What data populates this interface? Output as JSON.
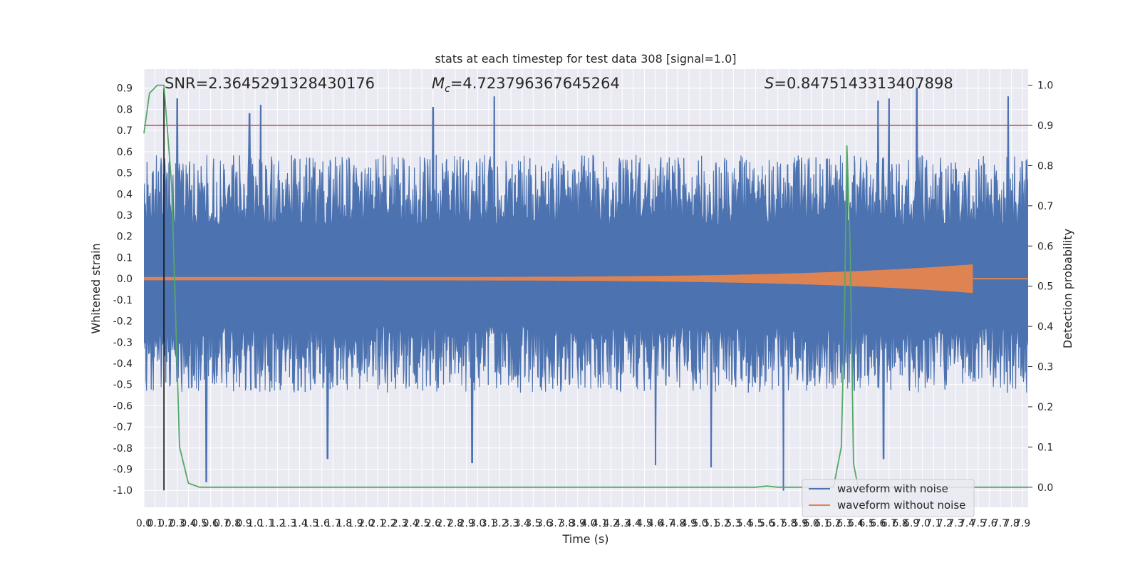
{
  "chart_data": {
    "type": "line",
    "title": "stats at each timestep for test data 308 [signal=1.0]",
    "xlabel": "Time (s)",
    "ylabel": "Whitened strain",
    "y2label": "Detection probability",
    "xlim": [
      0.0,
      7.95
    ],
    "ylim": [
      -1.08,
      0.99
    ],
    "y2lim": [
      -0.05,
      1.04
    ],
    "grid": true,
    "legend_position": "lower right",
    "x_ticks": [
      "0.0",
      "0.1",
      "0.2",
      "0.3",
      "0.4",
      "0.5",
      "0.6",
      "0.7",
      "0.8",
      "0.9",
      "1.0",
      "1.1",
      "1.2",
      "1.3",
      "1.4",
      "1.5",
      "1.6",
      "1.7",
      "1.8",
      "1.9",
      "2.0",
      "2.1",
      "2.2",
      "2.3",
      "2.4",
      "2.5",
      "2.6",
      "2.7",
      "2.8",
      "2.9",
      "3.0",
      "3.1",
      "3.2",
      "3.3",
      "3.4",
      "3.5",
      "3.6",
      "3.7",
      "3.8",
      "3.9",
      "4.0",
      "4.1",
      "4.2",
      "4.3",
      "4.4",
      "4.5",
      "4.6",
      "4.7",
      "4.8",
      "4.9",
      "5.0",
      "5.1",
      "5.2",
      "5.3",
      "5.4",
      "5.5",
      "5.6",
      "5.7",
      "5.8",
      "5.9",
      "6.0",
      "6.1",
      "6.2",
      "6.3",
      "6.4",
      "6.5",
      "6.6",
      "6.7",
      "6.8",
      "6.9",
      "7.0",
      "7.1",
      "7.2",
      "7.3",
      "7.4",
      "7.5",
      "7.6",
      "7.7",
      "7.8",
      "7.9"
    ],
    "y_ticks": [
      "0.9",
      "0.8",
      "0.7",
      "0.6",
      "0.5",
      "0.4",
      "0.3",
      "0.2",
      "0.1",
      "0.0",
      "-0.1",
      "-0.2",
      "-0.3",
      "-0.4",
      "-0.5",
      "-0.6",
      "-0.7",
      "-0.8",
      "-0.9",
      "-1.0"
    ],
    "y2_ticks": [
      "1.0",
      "0.9",
      "0.8",
      "0.7",
      "0.6",
      "0.5",
      "0.4",
      "0.3",
      "0.2",
      "0.1",
      "0.0"
    ],
    "annotations": [
      {
        "text": "SNR=2.3645291328430176"
      },
      {
        "text": "Mc=4.723796367645264",
        "math_symbol": "M",
        "math_sub": "c",
        "rest": "=4.723796367645264"
      },
      {
        "text": "S=0.8475143313407898",
        "math_symbol": "S",
        "rest": "=0.8475143313407898"
      }
    ],
    "vertical_marker_x": 0.18,
    "threshold_probability": 0.9,
    "series": [
      {
        "name": "waveform with noise",
        "color": "#4c72b0",
        "typical_upper": 0.45,
        "typical_lower": -0.4,
        "peaks": [
          {
            "x": 0.3,
            "y": 0.85
          },
          {
            "x": 0.95,
            "y": 0.78
          },
          {
            "x": 1.05,
            "y": 0.82
          },
          {
            "x": 2.6,
            "y": 0.81
          },
          {
            "x": 3.15,
            "y": 0.86
          },
          {
            "x": 6.6,
            "y": 0.84
          },
          {
            "x": 6.7,
            "y": 0.85
          },
          {
            "x": 6.95,
            "y": 0.9
          },
          {
            "x": 7.77,
            "y": 0.86
          },
          {
            "x": 0.56,
            "y": -0.96
          },
          {
            "x": 1.65,
            "y": -0.85
          },
          {
            "x": 2.95,
            "y": -0.87
          },
          {
            "x": 4.6,
            "y": -0.88
          },
          {
            "x": 5.1,
            "y": -0.89
          },
          {
            "x": 5.75,
            "y": -1.0
          },
          {
            "x": 6.65,
            "y": -0.85
          }
        ]
      },
      {
        "name": "waveform without noise",
        "color": "#dd8452",
        "chirp_end_x": 7.45,
        "chirp_peak_amplitude": 0.06
      },
      {
        "name": "",
        "axis": "right",
        "color": "#55a868",
        "x": [
          0.0,
          0.05,
          0.12,
          0.18,
          0.25,
          0.32,
          0.4,
          0.5,
          0.7,
          5.5,
          5.6,
          5.7,
          5.8,
          6.2,
          6.27,
          6.3,
          6.32,
          6.35,
          6.38,
          6.42,
          6.5,
          7.95
        ],
        "y": [
          0.88,
          0.98,
          1.0,
          1.0,
          0.75,
          0.1,
          0.01,
          0.0,
          0.0,
          0.0,
          0.003,
          0.0,
          0.0,
          0.0,
          0.1,
          0.45,
          0.85,
          0.6,
          0.06,
          0.0,
          0.0,
          0.0
        ]
      }
    ]
  }
}
